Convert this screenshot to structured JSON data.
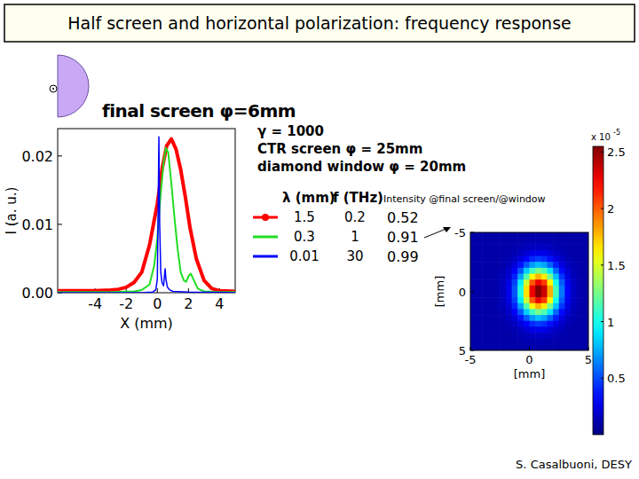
{
  "slide": {
    "title": "Half screen and horizontal polarization: frequency response",
    "credit": "S. Casalbuoni, DESY"
  },
  "chart_data": [
    {
      "type": "line",
      "title": "final screen φ=6mm",
      "x_label": "X (mm)",
      "y_label": "I (a. u.)",
      "annotations": [
        "γ = 1000",
        "CTR screen φ = 25mm",
        "diamond window φ = 20mm"
      ],
      "legend": "right",
      "legend_headers": [
        "λ (mm)",
        "f (THz)",
        "Intensity @final screen/@window"
      ],
      "xlim": [
        -6.4,
        5
      ],
      "xticks": [
        -4,
        -2,
        0,
        2,
        4
      ],
      "ylim": [
        0,
        0.024
      ],
      "yticks": [
        {
          "value": 0,
          "label": "0.00"
        },
        0.01,
        0.02
      ],
      "series": [
        {
          "name": "1.5",
          "color": "#ff0000",
          "marker": "circle",
          "frequency": 0.2,
          "intensity_ratio": 0.52,
          "x": [
            -6.4,
            -5,
            -4,
            -3,
            -2.5,
            -2,
            -1.5,
            -1,
            -0.5,
            0,
            0.3,
            0.6,
            0.9,
            1.2,
            1.5,
            1.8,
            2.1,
            2.5,
            3,
            3.5,
            4,
            5
          ],
          "values": [
            0.0003,
            0.0003,
            0.0003,
            0.0004,
            0.0005,
            0.0008,
            0.0015,
            0.003,
            0.007,
            0.013,
            0.018,
            0.0215,
            0.0225,
            0.021,
            0.018,
            0.014,
            0.0095,
            0.005,
            0.0018,
            0.0006,
            0.0003,
            0.0002
          ]
        },
        {
          "name": "0.3",
          "color": "#22dd22",
          "frequency": 1,
          "intensity_ratio": 0.91,
          "x": [
            -6.4,
            -3,
            -1.5,
            -1,
            -0.5,
            -0.2,
            0,
            0.2,
            0.4,
            0.55,
            0.7,
            0.9,
            1.1,
            1.3,
            1.5,
            1.7,
            1.85,
            2,
            2.15,
            2.35,
            2.6,
            3,
            4,
            5
          ],
          "values": [
            0.0001,
            0.0001,
            0.0002,
            0.0004,
            0.0012,
            0.004,
            0.008,
            0.014,
            0.019,
            0.0212,
            0.0205,
            0.016,
            0.011,
            0.0065,
            0.003,
            0.0018,
            0.0016,
            0.0024,
            0.0028,
            0.0018,
            0.0006,
            0.0002,
            0.0001,
            0.0001
          ]
        },
        {
          "name": "0.01",
          "color": "#0000ff",
          "frequency": 30,
          "intensity_ratio": 0.99,
          "x": [
            -6.4,
            -1,
            -0.3,
            -0.1,
            0,
            0.05,
            0.1,
            0.15,
            0.22,
            0.3,
            0.4,
            0.5,
            0.55,
            0.65,
            0.8,
            1,
            2,
            5
          ],
          "values": [
            0,
            0,
            0.0001,
            0.0004,
            0.002,
            0.012,
            0.0228,
            0.01,
            0.003,
            0.0015,
            0.001,
            0.0035,
            0.002,
            0.0008,
            0.0004,
            0.0002,
            0.0001,
            0
          ]
        }
      ]
    },
    {
      "type": "heatmap",
      "x_label": "[mm]",
      "y_label": "[mm]",
      "xlim": [
        -5,
        5
      ],
      "xticks": [
        -5,
        0,
        5
      ],
      "ylim": [
        5,
        -5
      ],
      "yticks": [
        -5,
        0,
        5
      ],
      "color_range": [
        0,
        2.55
      ],
      "color_ticks": [
        0.5,
        1,
        1.5,
        2,
        2.5
      ],
      "color_multiplier": "x 10",
      "color_exponent": "-5",
      "cells": [
        [
          0.1,
          0.1,
          0.1,
          0.1,
          0.1,
          0.1,
          0.1,
          0.1,
          0.1,
          0.1,
          0.11,
          0.11,
          0.11,
          0.1,
          0.1,
          0.1,
          0.1,
          0.1,
          0.1,
          0.1
        ],
        [
          0.1,
          0.1,
          0.1,
          0.1,
          0.1,
          0.1,
          0.1,
          0.1,
          0.11,
          0.12,
          0.12,
          0.13,
          0.12,
          0.12,
          0.11,
          0.11,
          0.1,
          0.1,
          0.1,
          0.1
        ],
        [
          0.1,
          0.1,
          0.1,
          0.1,
          0.1,
          0.1,
          0.1,
          0.11,
          0.13,
          0.14,
          0.16,
          0.17,
          0.16,
          0.15,
          0.13,
          0.11,
          0.11,
          0.1,
          0.1,
          0.1
        ],
        [
          0.1,
          0.1,
          0.1,
          0.1,
          0.1,
          0.1,
          0.11,
          0.13,
          0.16,
          0.21,
          0.25,
          0.27,
          0.26,
          0.22,
          0.17,
          0.14,
          0.11,
          0.1,
          0.1,
          0.1
        ],
        [
          0.1,
          0.1,
          0.1,
          0.1,
          0.1,
          0.11,
          0.12,
          0.16,
          0.23,
          0.33,
          0.42,
          0.46,
          0.43,
          0.35,
          0.25,
          0.18,
          0.13,
          0.11,
          0.1,
          0.1
        ],
        [
          0.1,
          0.1,
          0.1,
          0.1,
          0.1,
          0.11,
          0.15,
          0.22,
          0.36,
          0.54,
          0.71,
          0.79,
          0.73,
          0.57,
          0.39,
          0.24,
          0.16,
          0.12,
          0.1,
          0.1
        ],
        [
          0.1,
          0.1,
          0.1,
          0.1,
          0.11,
          0.12,
          0.18,
          0.3,
          0.53,
          0.83,
          1.11,
          1.25,
          1.15,
          0.89,
          0.58,
          0.34,
          0.2,
          0.13,
          0.11,
          0.1
        ],
        [
          0.1,
          0.1,
          0.1,
          0.1,
          0.11,
          0.14,
          0.21,
          0.4,
          0.72,
          1.16,
          1.58,
          1.78,
          1.64,
          1.25,
          0.8,
          0.45,
          0.24,
          0.15,
          0.11,
          0.1
        ],
        [
          0.1,
          0.1,
          0.1,
          0.1,
          0.11,
          0.15,
          0.25,
          0.48,
          0.91,
          1.47,
          2.01,
          2.27,
          2.09,
          1.59,
          1.01,
          0.55,
          0.28,
          0.16,
          0.12,
          0.1
        ],
        [
          0.1,
          0.1,
          0.1,
          0.1,
          0.11,
          0.15,
          0.27,
          0.53,
          1.02,
          1.66,
          2.27,
          2.56,
          2.36,
          1.79,
          1.13,
          0.61,
          0.31,
          0.17,
          0.12,
          0.1
        ],
        [
          0.1,
          0.1,
          0.1,
          0.1,
          0.11,
          0.15,
          0.27,
          0.53,
          1.02,
          1.66,
          2.27,
          2.56,
          2.36,
          1.79,
          1.13,
          0.61,
          0.31,
          0.17,
          0.12,
          0.1
        ],
        [
          0.1,
          0.1,
          0.1,
          0.1,
          0.11,
          0.15,
          0.25,
          0.48,
          0.91,
          1.47,
          2.01,
          2.27,
          2.09,
          1.59,
          1.01,
          0.55,
          0.28,
          0.16,
          0.12,
          0.1
        ],
        [
          0.1,
          0.1,
          0.1,
          0.1,
          0.11,
          0.14,
          0.21,
          0.4,
          0.72,
          1.16,
          1.58,
          1.78,
          1.64,
          1.25,
          0.8,
          0.45,
          0.24,
          0.15,
          0.11,
          0.1
        ],
        [
          0.1,
          0.1,
          0.1,
          0.1,
          0.11,
          0.12,
          0.18,
          0.3,
          0.53,
          0.83,
          1.11,
          1.25,
          1.15,
          0.89,
          0.58,
          0.34,
          0.2,
          0.13,
          0.11,
          0.1
        ],
        [
          0.1,
          0.1,
          0.1,
          0.1,
          0.1,
          0.11,
          0.15,
          0.22,
          0.36,
          0.54,
          0.71,
          0.79,
          0.73,
          0.57,
          0.39,
          0.24,
          0.16,
          0.12,
          0.1,
          0.1
        ],
        [
          0.1,
          0.1,
          0.1,
          0.1,
          0.1,
          0.11,
          0.12,
          0.16,
          0.23,
          0.33,
          0.42,
          0.46,
          0.43,
          0.35,
          0.25,
          0.18,
          0.13,
          0.11,
          0.1,
          0.1
        ],
        [
          0.1,
          0.1,
          0.1,
          0.1,
          0.1,
          0.1,
          0.11,
          0.13,
          0.16,
          0.21,
          0.25,
          0.27,
          0.26,
          0.22,
          0.17,
          0.14,
          0.11,
          0.1,
          0.1,
          0.1
        ],
        [
          0.1,
          0.1,
          0.1,
          0.1,
          0.1,
          0.1,
          0.1,
          0.11,
          0.13,
          0.14,
          0.16,
          0.17,
          0.16,
          0.15,
          0.13,
          0.11,
          0.11,
          0.1,
          0.1,
          0.1
        ],
        [
          0.1,
          0.1,
          0.1,
          0.1,
          0.1,
          0.1,
          0.1,
          0.1,
          0.11,
          0.12,
          0.12,
          0.13,
          0.12,
          0.12,
          0.11,
          0.11,
          0.1,
          0.1,
          0.1,
          0.1
        ],
        [
          0.1,
          0.1,
          0.1,
          0.1,
          0.1,
          0.1,
          0.1,
          0.1,
          0.1,
          0.1,
          0.11,
          0.11,
          0.11,
          0.1,
          0.1,
          0.1,
          0.1,
          0.1,
          0.1,
          0.1
        ]
      ]
    }
  ]
}
